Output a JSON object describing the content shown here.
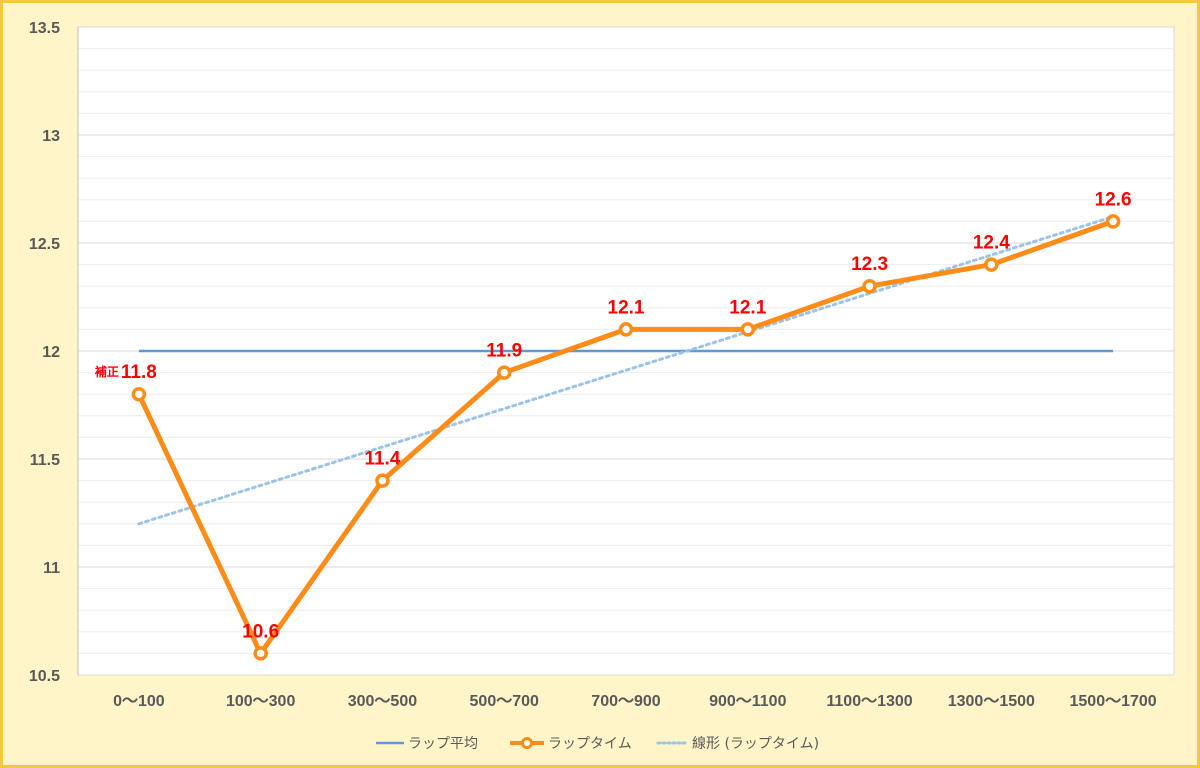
{
  "chart_data": {
    "type": "line",
    "categories": [
      "0～100",
      "100～300",
      "300～500",
      "500～700",
      "700～900",
      "900～1100",
      "1100～1300",
      "1300～1500",
      "1500～1700"
    ],
    "ylim": [
      10.5,
      13.5
    ],
    "yticks": [
      "10.5",
      "11",
      "11.5",
      "12",
      "12.5",
      "13",
      "13.5"
    ],
    "grid": true,
    "legend_position": "bottom",
    "series": [
      {
        "name": "ラップ平均",
        "values": [
          12.0,
          12.0,
          12.0,
          12.0,
          12.0,
          12.0,
          12.0,
          12.0,
          12.0
        ],
        "color": "#5b9bd5",
        "style": "solid"
      },
      {
        "name": "ラップタイム",
        "values": [
          11.8,
          10.6,
          11.4,
          11.9,
          12.1,
          12.1,
          12.3,
          12.4,
          12.6
        ],
        "color": "#fd8c19",
        "style": "solid-markers"
      },
      {
        "name": "線形 (ラップタイム)",
        "values": [
          11.2,
          11.378,
          11.556,
          11.733,
          11.911,
          12.089,
          12.267,
          12.444,
          12.622
        ],
        "color": "#9dc3e6",
        "style": "dotted"
      }
    ],
    "data_labels": [
      "11.8",
      "10.6",
      "11.4",
      "11.9",
      "12.1",
      "12.1",
      "12.3",
      "12.4",
      "12.6"
    ],
    "annotations": [
      {
        "text": "補正",
        "category": "0～100"
      }
    ],
    "colors": {
      "background": "#fff5c9",
      "border": "#f5c842",
      "plot_bg": "#ffffff",
      "label_color": "#ff0000"
    }
  }
}
